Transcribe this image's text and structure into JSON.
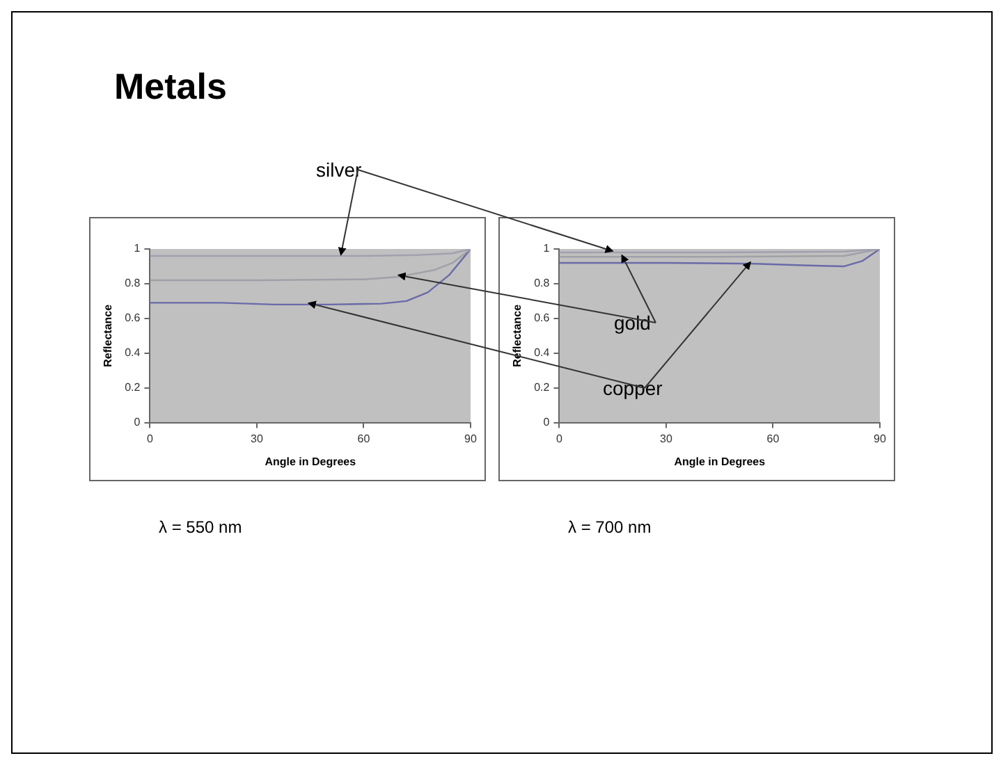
{
  "chart_data": [
    {
      "type": "line",
      "title": "Metals",
      "xlabel": "Angle in Degrees",
      "ylabel": "Reflectance",
      "xlim": [
        0,
        90
      ],
      "xticks": [
        0,
        30,
        60,
        90
      ],
      "ylim": [
        0,
        1
      ],
      "yticks": [
        0,
        0.2,
        0.4,
        0.6,
        0.8,
        1
      ],
      "grid": false,
      "legend": false,
      "marker": "none",
      "annotations": [
        "λ = 550 nm"
      ],
      "series": [
        {
          "name": "silver",
          "color": "#a0a0b0",
          "x": [
            0,
            30,
            60,
            75,
            85,
            90
          ],
          "values": [
            0.96,
            0.96,
            0.96,
            0.965,
            0.975,
            1
          ]
        },
        {
          "name": "gold",
          "color": "#a0a0a8",
          "x": [
            0,
            30,
            60,
            70,
            80,
            85,
            90
          ],
          "values": [
            0.82,
            0.82,
            0.825,
            0.84,
            0.88,
            0.92,
            1
          ]
        },
        {
          "name": "copper",
          "color": "#6a6aa8",
          "x": [
            0,
            20,
            35,
            50,
            65,
            72,
            78,
            84,
            90
          ],
          "values": [
            0.69,
            0.69,
            0.68,
            0.68,
            0.685,
            0.7,
            0.75,
            0.85,
            1
          ]
        }
      ]
    },
    {
      "type": "line",
      "xlabel": "Angle in Degrees",
      "ylabel": "Reflectance",
      "xlim": [
        0,
        90
      ],
      "xticks": [
        0,
        30,
        60,
        90
      ],
      "ylim": [
        0,
        1
      ],
      "yticks": [
        0,
        0.2,
        0.4,
        0.6,
        0.8,
        1
      ],
      "grid": false,
      "legend": false,
      "marker": "none",
      "annotations": [
        "λ = 700 nm"
      ],
      "series": [
        {
          "color": "#a0a0b0",
          "x": [
            0,
            45,
            80,
            90
          ],
          "values": [
            0.98,
            0.98,
            0.985,
            1
          ]
        },
        {
          "color": "#a0a0a8",
          "x": [
            0,
            45,
            80,
            90
          ],
          "values": [
            0.955,
            0.955,
            0.96,
            1
          ]
        },
        {
          "color": "#6a6aa8",
          "x": [
            0,
            30,
            55,
            70,
            80,
            85,
            90
          ],
          "values": [
            0.92,
            0.92,
            0.915,
            0.905,
            0.9,
            0.93,
            1
          ]
        }
      ]
    }
  ]
}
